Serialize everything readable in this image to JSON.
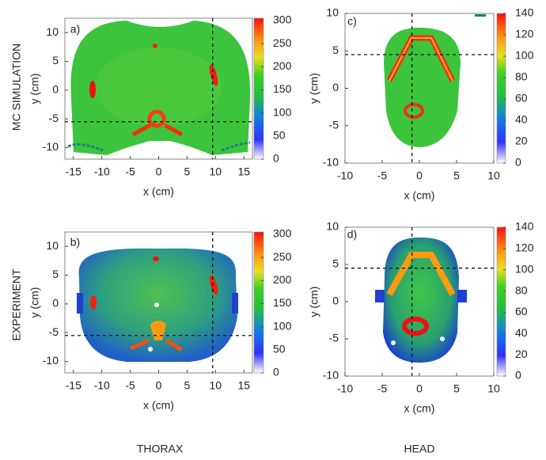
{
  "row_labels": [
    "MC SIMULATION",
    "EXPERIMENT"
  ],
  "column_labels": [
    "THORAX",
    "HEAD"
  ],
  "chart_data": [
    {
      "type": "heatmap",
      "panel_label": "a)",
      "xlabel": "x (cm)",
      "ylabel": "y (cm)",
      "xlim": [
        -16.5,
        16.5
      ],
      "ylim": [
        -12,
        12.5
      ],
      "xticks": [
        -15,
        -10,
        -5,
        0,
        5,
        10,
        15
      ],
      "yticks": [
        -10,
        -5,
        0,
        5,
        10
      ],
      "clim": [
        0,
        305
      ],
      "cticks": [
        0,
        50,
        100,
        150,
        200,
        250,
        300
      ],
      "crosshair": {
        "x": 9.5,
        "y": -5.5
      }
    },
    {
      "type": "heatmap",
      "panel_label": "b)",
      "xlabel": "x (cm)",
      "ylabel": "y (cm)",
      "xlim": [
        -16.5,
        16.5
      ],
      "ylim": [
        -12,
        12.5
      ],
      "xticks": [
        -15,
        -10,
        -5,
        0,
        5,
        10,
        15
      ],
      "yticks": [
        -10,
        -5,
        0,
        5,
        10
      ],
      "clim": [
        0,
        305
      ],
      "cticks": [
        0,
        50,
        100,
        150,
        200,
        250,
        300
      ],
      "crosshair": {
        "x": 9.5,
        "y": -5.5
      }
    },
    {
      "type": "heatmap",
      "panel_label": "c)",
      "xlabel": "x (cm)",
      "ylabel": "y (cm)",
      "xlim": [
        -10,
        10
      ],
      "ylim": [
        -10,
        10
      ],
      "xticks": [
        -10,
        -5,
        0,
        5,
        10
      ],
      "yticks": [
        -10,
        -5,
        0,
        5,
        10
      ],
      "clim": [
        0,
        140
      ],
      "cticks": [
        0,
        20,
        40,
        60,
        80,
        100,
        120,
        140
      ],
      "crosshair": {
        "x": -1,
        "y": 4.5
      }
    },
    {
      "type": "heatmap",
      "panel_label": "d)",
      "xlabel": "x (cm)",
      "ylabel": "y (cm)",
      "xlim": [
        -10,
        10
      ],
      "ylim": [
        -10,
        10
      ],
      "xticks": [
        -10,
        -5,
        0,
        5,
        10
      ],
      "yticks": [
        -10,
        -5,
        0,
        5,
        10
      ],
      "clim": [
        0,
        140
      ],
      "cticks": [
        0,
        20,
        40,
        60,
        80,
        100,
        120,
        140
      ],
      "crosshair": {
        "x": -1,
        "y": 4.5
      }
    }
  ]
}
